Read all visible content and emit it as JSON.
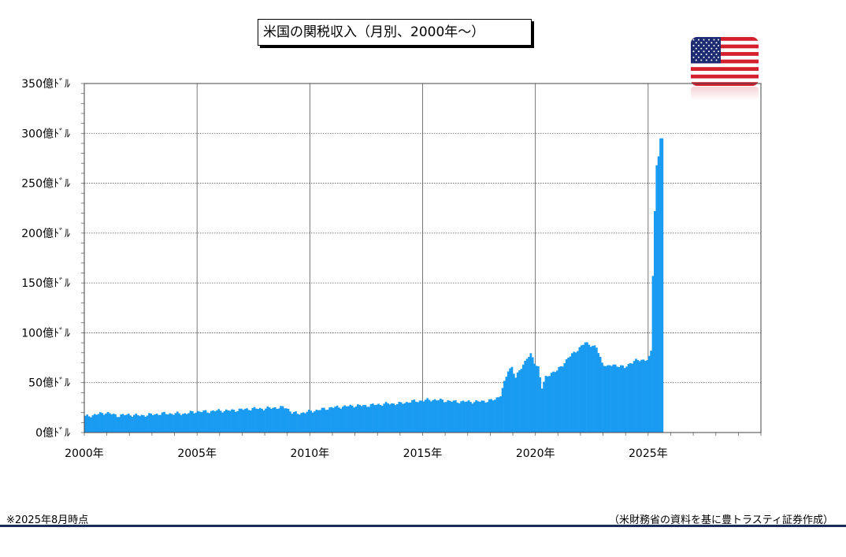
{
  "chart_data": {
    "type": "bar",
    "title": "米国の関税収入（月別、2000年～）",
    "y_ticks": [
      "0億ﾄﾞﾙ",
      "50億ﾄﾞﾙ",
      "100億ﾄﾞﾙ",
      "150億ﾄﾞﾙ",
      "200億ﾄﾞﾙ",
      "250億ﾄﾞﾙ",
      "300億ﾄﾞﾙ",
      "350億ﾄﾞﾙ"
    ],
    "x_ticks": [
      "2000年",
      "2005年",
      "2010年",
      "2015年",
      "2020年",
      "2025年"
    ],
    "ylim": [
      0,
      350
    ],
    "xlim": [
      "2000-01",
      "2029-12"
    ],
    "grid": true,
    "bar_color": "#1a9bf2",
    "x_start": "2000-01",
    "y_anchors": [
      [
        "2000-01",
        16
      ],
      [
        "2000-12",
        20
      ],
      [
        "2001-06",
        17
      ],
      [
        "2001-12",
        18
      ],
      [
        "2002-06",
        17
      ],
      [
        "2002-12",
        18
      ],
      [
        "2003-06",
        19
      ],
      [
        "2003-12",
        19
      ],
      [
        "2004-06",
        19
      ],
      [
        "2004-12",
        21
      ],
      [
        "2005-06",
        21
      ],
      [
        "2005-12",
        22
      ],
      [
        "2006-06",
        22
      ],
      [
        "2006-12",
        23
      ],
      [
        "2007-06",
        24
      ],
      [
        "2007-12",
        24
      ],
      [
        "2008-06",
        25
      ],
      [
        "2008-12",
        25
      ],
      [
        "2009-03",
        20
      ],
      [
        "2009-06",
        19
      ],
      [
        "2009-12",
        21
      ],
      [
        "2010-06",
        23
      ],
      [
        "2010-12",
        25
      ],
      [
        "2011-06",
        26
      ],
      [
        "2011-12",
        27
      ],
      [
        "2012-06",
        27
      ],
      [
        "2012-12",
        28
      ],
      [
        "2013-06",
        29
      ],
      [
        "2013-12",
        29
      ],
      [
        "2014-06",
        31
      ],
      [
        "2014-12",
        32
      ],
      [
        "2015-06",
        33
      ],
      [
        "2015-12",
        32
      ],
      [
        "2016-06",
        31
      ],
      [
        "2016-12",
        31
      ],
      [
        "2017-06",
        31
      ],
      [
        "2017-12",
        32
      ],
      [
        "2018-03",
        33
      ],
      [
        "2018-06",
        38
      ],
      [
        "2018-08",
        50
      ],
      [
        "2018-10",
        62
      ],
      [
        "2018-12",
        66
      ],
      [
        "2019-02",
        55
      ],
      [
        "2019-05",
        65
      ],
      [
        "2019-08",
        75
      ],
      [
        "2019-10",
        78
      ],
      [
        "2019-12",
        70
      ],
      [
        "2020-02",
        66
      ],
      [
        "2020-04",
        45
      ],
      [
        "2020-06",
        55
      ],
      [
        "2020-09",
        60
      ],
      [
        "2020-12",
        62
      ],
      [
        "2021-03",
        68
      ],
      [
        "2021-06",
        75
      ],
      [
        "2021-09",
        80
      ],
      [
        "2021-12",
        85
      ],
      [
        "2022-03",
        90
      ],
      [
        "2022-06",
        88
      ],
      [
        "2022-09",
        85
      ],
      [
        "2022-12",
        70
      ],
      [
        "2023-03",
        66
      ],
      [
        "2023-06",
        68
      ],
      [
        "2023-09",
        67
      ],
      [
        "2023-12",
        65
      ],
      [
        "2024-03",
        70
      ],
      [
        "2024-06",
        72
      ],
      [
        "2024-09",
        73
      ],
      [
        "2024-12",
        73
      ],
      [
        "2025-01",
        75
      ],
      [
        "2025-02",
        82
      ],
      [
        "2025-03",
        157
      ],
      [
        "2025-04",
        222
      ],
      [
        "2025-05",
        268
      ],
      [
        "2025-06",
        277
      ],
      [
        "2025-07",
        295
      ],
      [
        "2025-08",
        295
      ]
    ]
  },
  "footer": {
    "note_left": "※2025年8月時点",
    "note_right": "（米財務省の資料を基に豊トラスティ証券作成）"
  },
  "flag": {
    "name": "us-flag-icon",
    "red": "#d4202d",
    "blue": "#1d2b72",
    "white": "#ffffff"
  }
}
